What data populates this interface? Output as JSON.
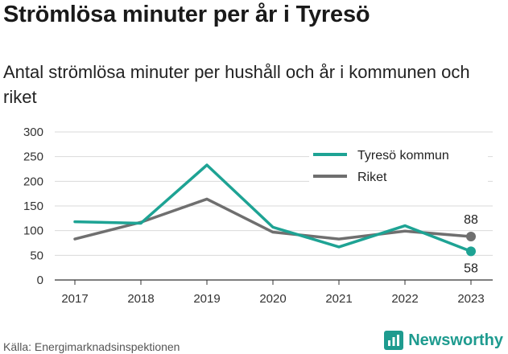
{
  "title": "Strömlösa minuter per år i Tyresö",
  "subtitle": "Antal strömlösa minuter per hushåll och år i kommunen och riket",
  "source": "Källa: Energimarknadsinspektionen",
  "brand": {
    "name": "Newsworthy",
    "icon": "newsworthy-logo-icon"
  },
  "colors": {
    "tyreso": "#1ea394",
    "riket": "#6f6f6f",
    "grid": "#d9d9d9",
    "axis": "#333333",
    "brand": "#1e9b8f"
  },
  "chart_data": {
    "type": "line",
    "categories": [
      "2017",
      "2018",
      "2019",
      "2020",
      "2021",
      "2022",
      "2023"
    ],
    "ylim": [
      0,
      300
    ],
    "yticks": [
      "0",
      "50",
      "100",
      "150",
      "200",
      "250",
      "300"
    ],
    "grid": true,
    "legend_position": "top-right",
    "series": [
      {
        "name": "Tyresö kommun",
        "values": [
          118,
          115,
          233,
          107,
          67,
          110,
          58
        ],
        "end_label": "58"
      },
      {
        "name": "Riket",
        "values": [
          83,
          117,
          164,
          97,
          83,
          99,
          88
        ],
        "end_label": "88"
      }
    ]
  }
}
